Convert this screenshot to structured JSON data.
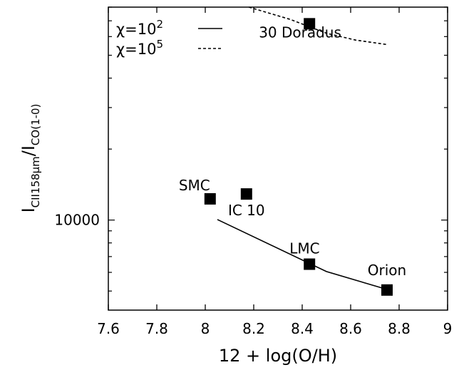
{
  "chart_data": {
    "type": "scatter",
    "xlabel": "12 + log(O/H)",
    "ylabel": {
      "main": "I",
      "sub1": "CII158μm",
      "slash": "/I",
      "sub2": "CO(1-0)"
    },
    "xlim": [
      7.6,
      9.0
    ],
    "x_ticks": [
      7.6,
      7.8,
      8.0,
      8.2,
      8.4,
      8.6,
      8.8,
      9.0
    ],
    "x_tick_labels": [
      "7.6",
      "7.8",
      "8",
      "8.2",
      "8.4",
      "8.6",
      "8.8",
      "9"
    ],
    "y_scale": "log",
    "ylim": [
      4150,
      80000
    ],
    "y_ticks": [
      10000
    ],
    "y_tick_labels": [
      "10000"
    ],
    "grid": false,
    "legend_position": "top-left",
    "points": [
      {
        "label": "30 Doradus",
        "x": 8.43,
        "y": 68000
      },
      {
        "label": "SMC",
        "x": 8.02,
        "y": 12300
      },
      {
        "label": "IC 10",
        "x": 8.17,
        "y": 12900
      },
      {
        "label": "LMC",
        "x": 8.43,
        "y": 6500
      },
      {
        "label": "Orion",
        "x": 8.75,
        "y": 5050
      }
    ],
    "series": [
      {
        "name": "χ=10^2",
        "legend_base": "χ=10",
        "legend_exp": "2",
        "style": "solid",
        "points": [
          [
            8.05,
            10050
          ],
          [
            8.5,
            6050
          ],
          [
            8.73,
            5150
          ]
        ]
      },
      {
        "name": "χ=10^5",
        "legend_base": "χ=10",
        "legend_exp": "5",
        "style": "dashed",
        "points": [
          [
            8.18,
            80000
          ],
          [
            8.35,
            71000
          ],
          [
            8.5,
            62000
          ],
          [
            8.62,
            58000
          ],
          [
            8.75,
            55500
          ]
        ]
      }
    ]
  }
}
